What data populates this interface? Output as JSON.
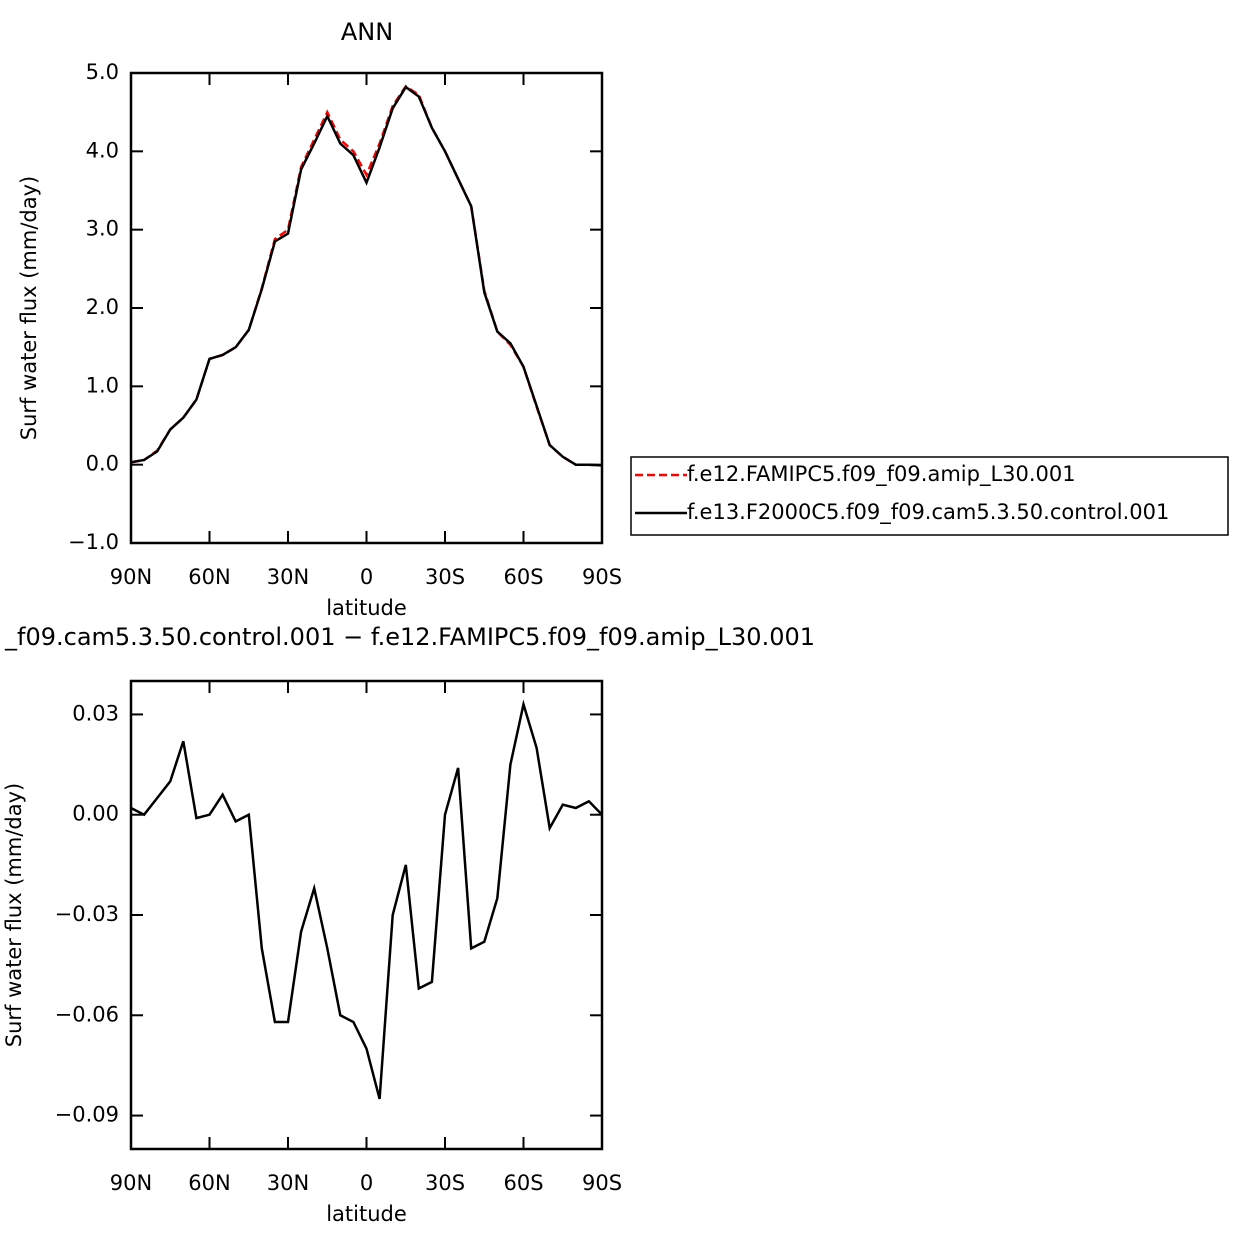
{
  "chart_data": [
    {
      "type": "line",
      "title": "ANN",
      "xlabel": "latitude",
      "ylabel": "Surf water flux (mm/day)",
      "x": [
        90,
        85,
        80,
        75,
        70,
        65,
        60,
        55,
        50,
        45,
        40,
        35,
        30,
        25,
        20,
        15,
        10,
        5,
        0,
        -5,
        -10,
        -15,
        -20,
        -25,
        -30,
        -35,
        -40,
        -45,
        -50,
        -55,
        -60,
        -65,
        -70,
        -75,
        -80,
        -85,
        -90
      ],
      "series": [
        {
          "name": "f.e12.FAMIPC5.f09_f09.amip_L30.001",
          "color": "#ff0000",
          "style": "dashed",
          "values": [
            0.03,
            0.06,
            0.18,
            0.45,
            0.6,
            0.83,
            1.35,
            1.4,
            1.5,
            1.72,
            2.25,
            2.88,
            3.0,
            3.8,
            4.15,
            4.5,
            4.15,
            4.0,
            3.7,
            4.1,
            4.58,
            4.83,
            4.72,
            4.3,
            4.0,
            3.65,
            3.3,
            2.22,
            1.7,
            1.53,
            1.25,
            0.74,
            0.25,
            0.1,
            0.0,
            0.0,
            -0.01
          ]
        },
        {
          "name": "f.e13.F2000C5.f09_f09.cam5.3.50.control.001",
          "color": "#000000",
          "style": "solid",
          "values": [
            0.03,
            0.06,
            0.17,
            0.45,
            0.6,
            0.83,
            1.35,
            1.4,
            1.5,
            1.72,
            2.24,
            2.85,
            2.95,
            3.77,
            4.1,
            4.45,
            4.1,
            3.95,
            3.6,
            4.05,
            4.55,
            4.82,
            4.7,
            4.3,
            4.0,
            3.65,
            3.3,
            2.2,
            1.7,
            1.55,
            1.25,
            0.75,
            0.25,
            0.1,
            0.0,
            0.0,
            -0.01
          ]
        }
      ],
      "xlim": [
        90,
        -90
      ],
      "xticks": [
        {
          "value": 90,
          "label": "90N"
        },
        {
          "value": 60,
          "label": "60N"
        },
        {
          "value": 30,
          "label": "30N"
        },
        0,
        {
          "value": -30,
          "label": "30S"
        },
        {
          "value": -60,
          "label": "60S"
        },
        {
          "value": -90,
          "label": "90S"
        }
      ],
      "ylim": [
        -1,
        5
      ],
      "yticks": [
        {
          "value": -1,
          "label": "−1.0"
        },
        {
          "value": 0,
          "label": "0.0"
        },
        {
          "value": 1,
          "label": "1.0"
        },
        {
          "value": 2,
          "label": "2.0"
        },
        {
          "value": 3,
          "label": "3.0"
        },
        {
          "value": 4,
          "label": "4.0"
        },
        {
          "value": 5,
          "label": "5.0"
        }
      ],
      "legend": "outside right"
    },
    {
      "type": "line",
      "title": "_f09.cam5.3.50.control.001 − f.e12.FAMIPC5.f09_f09.amip_L30.001",
      "xlabel": "latitude",
      "ylabel": "Surf water flux (mm/day)",
      "x": [
        90,
        85,
        80,
        75,
        70,
        65,
        60,
        55,
        50,
        45,
        40,
        35,
        30,
        25,
        20,
        15,
        10,
        5,
        0,
        -5,
        -10,
        -15,
        -20,
        -25,
        -30,
        -35,
        -40,
        -45,
        -50,
        -55,
        -60,
        -65,
        -70,
        -75,
        -80,
        -85,
        -90
      ],
      "series": [
        {
          "color": "#000000",
          "style": "solid",
          "values": [
            0.002,
            0.0,
            0.005,
            0.01,
            0.022,
            -0.001,
            0.0,
            0.006,
            -0.002,
            0.0,
            -0.04,
            -0.062,
            -0.062,
            -0.035,
            -0.022,
            -0.04,
            -0.06,
            -0.062,
            -0.07,
            -0.085,
            -0.03,
            -0.015,
            -0.052,
            -0.05,
            0.0,
            0.014,
            -0.04,
            -0.038,
            -0.025,
            0.015,
            0.033,
            0.02,
            -0.004,
            0.003,
            0.002,
            0.004,
            0.0
          ]
        }
      ],
      "xlim": [
        90,
        -90
      ],
      "xticks": [
        {
          "value": 90,
          "label": "90N"
        },
        {
          "value": 60,
          "label": "60N"
        },
        {
          "value": 30,
          "label": "30N"
        },
        0,
        {
          "value": -30,
          "label": "30S"
        },
        {
          "value": -60,
          "label": "60S"
        },
        {
          "value": -90,
          "label": "90S"
        }
      ],
      "ylim": [
        -0.1,
        0.04
      ],
      "yticks": [
        {
          "value": -0.09,
          "label": "−0.09"
        },
        {
          "value": -0.06,
          "label": "−0.06"
        },
        {
          "value": -0.03,
          "label": "−0.03"
        },
        {
          "value": 0,
          "label": "0.00"
        },
        {
          "value": 0.03,
          "label": "0.03"
        }
      ]
    }
  ]
}
